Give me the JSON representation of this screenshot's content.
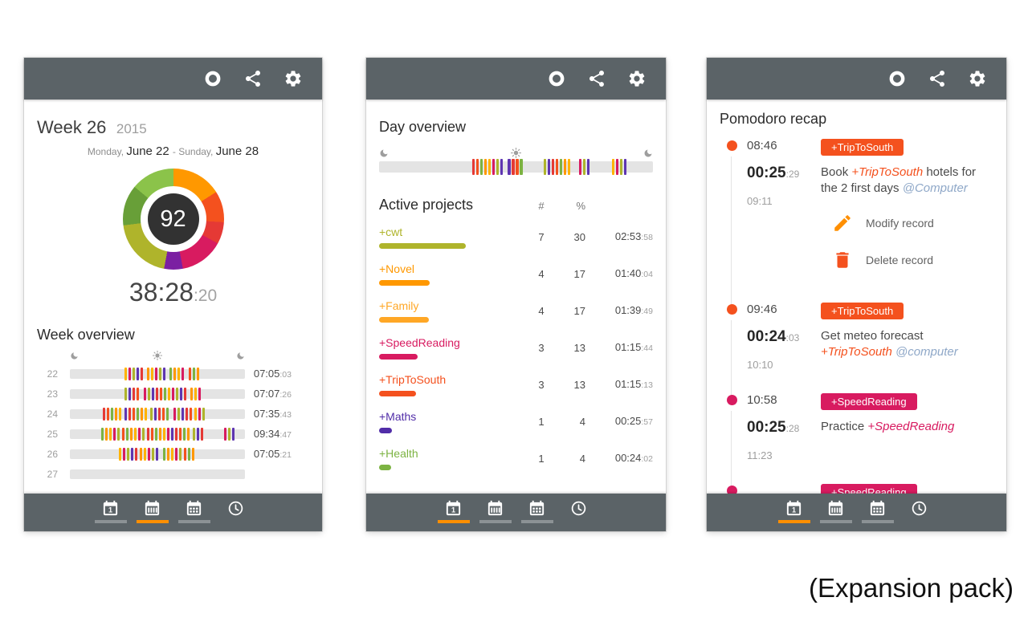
{
  "caption": "(Expansion pack)",
  "colors": {
    "toolbar": "#5b6367",
    "accent": "#FF8F00",
    "deep_orange": "#F4511E",
    "pink": "#D81B60",
    "context_blue": "#8FA8C8",
    "palette": [
      "#AFB42B",
      "#FF9800",
      "#E53935",
      "#D81B60",
      "#7CB342",
      "#5E35B1",
      "#FFB300",
      "#F4511E"
    ]
  },
  "toolbar": {
    "icons": [
      {
        "name": "record"
      },
      {
        "name": "share"
      },
      {
        "name": "settings"
      }
    ]
  },
  "nav": {
    "tabs": [
      {
        "name": "day-view",
        "icon": "day-calendar",
        "underline": true
      },
      {
        "name": "week-view",
        "icon": "week-calendar",
        "underline": true
      },
      {
        "name": "month-view",
        "icon": "month-calendar",
        "underline": true
      },
      {
        "name": "history",
        "icon": "history-clock",
        "underline": false
      }
    ]
  },
  "week_panel": {
    "selected_tab": 1,
    "title": "Week 26",
    "year": "2015",
    "range": [
      {
        "t": "Monday, ",
        "k": "sm"
      },
      {
        "t": "June 22 ",
        "k": "lg"
      },
      {
        "t": "- Sunday, ",
        "k": "sm"
      },
      {
        "t": "June 28",
        "k": "lg"
      }
    ],
    "donut": {
      "value": "92",
      "segments": [
        {
          "color": "#FF9800",
          "pct": 16
        },
        {
          "color": "#F4511E",
          "pct": 10
        },
        {
          "color": "#E53935",
          "pct": 7
        },
        {
          "color": "#D81B60",
          "pct": 14
        },
        {
          "color": "#7B1FA2",
          "pct": 6
        },
        {
          "color": "#AFB42B",
          "pct": 20
        },
        {
          "color": "#689F38",
          "pct": 13
        },
        {
          "color": "#8BC34A",
          "pct": 14
        }
      ]
    },
    "total": {
      "main": "38:28",
      "sec": ":20"
    },
    "section_title": "Week overview",
    "rows": [
      {
        "day": "22",
        "time": "07:05",
        "sec": ":03",
        "clusters": [
          {
            "s": 0.31,
            "n": 5
          },
          {
            "s": 0.44,
            "n": 5
          },
          {
            "s": 0.57,
            "n": 4
          },
          {
            "s": 0.68,
            "n": 3
          }
        ]
      },
      {
        "day": "23",
        "time": "07:07",
        "sec": ":26",
        "clusters": [
          {
            "s": 0.31,
            "n": 4
          },
          {
            "s": 0.42,
            "n": 6
          },
          {
            "s": 0.56,
            "n": 5
          },
          {
            "s": 0.69,
            "n": 3
          }
        ]
      },
      {
        "day": "24",
        "time": "07:35",
        "sec": ":43",
        "clusters": [
          {
            "s": 0.19,
            "n": 5
          },
          {
            "s": 0.31,
            "n": 6
          },
          {
            "s": 0.46,
            "n": 5
          },
          {
            "s": 0.59,
            "n": 5
          },
          {
            "s": 0.71,
            "n": 3
          }
        ]
      },
      {
        "day": "25",
        "time": "09:34",
        "sec": ":47",
        "clusters": [
          {
            "s": 0.18,
            "n": 5
          },
          {
            "s": 0.3,
            "n": 6
          },
          {
            "s": 0.44,
            "n": 6
          },
          {
            "s": 0.58,
            "n": 5
          },
          {
            "s": 0.7,
            "n": 3
          },
          {
            "s": 0.88,
            "n": 3
          }
        ]
      },
      {
        "day": "26",
        "time": "07:05",
        "sec": ":21",
        "clusters": [
          {
            "s": 0.28,
            "n": 5
          },
          {
            "s": 0.4,
            "n": 5
          },
          {
            "s": 0.53,
            "n": 5
          },
          {
            "s": 0.65,
            "n": 3
          }
        ]
      },
      {
        "day": "27",
        "time": "",
        "sec": "",
        "clusters": []
      }
    ]
  },
  "day_panel": {
    "selected_tab": 0,
    "title": "Day overview",
    "clusters": [
      {
        "s": 0.34,
        "n": 8
      },
      {
        "s": 0.47,
        "n": 4
      },
      {
        "s": 0.6,
        "n": 7
      },
      {
        "s": 0.73,
        "n": 3
      },
      {
        "s": 0.85,
        "n": 4
      }
    ],
    "projects_title": "Active projects",
    "col_count": "#",
    "col_pct": "%",
    "projects": [
      {
        "name": "+cwt",
        "color": "#AFB42B",
        "count": "7",
        "pct": "30",
        "time": "02:53",
        "sec": ":58",
        "bar": 100
      },
      {
        "name": "+Novel",
        "color": "#FF9800",
        "count": "4",
        "pct": "17",
        "time": "01:40",
        "sec": ":04",
        "bar": 58
      },
      {
        "name": "+Family",
        "color": "#FFA726",
        "count": "4",
        "pct": "17",
        "time": "01:39",
        "sec": ":49",
        "bar": 57
      },
      {
        "name": "+SpeedReading",
        "color": "#D81B60",
        "count": "3",
        "pct": "13",
        "time": "01:15",
        "sec": ":44",
        "bar": 44
      },
      {
        "name": "+TripToSouth",
        "color": "#F4511E",
        "count": "3",
        "pct": "13",
        "time": "01:15",
        "sec": ":13",
        "bar": 43
      },
      {
        "name": "+Maths",
        "color": "#512DA8",
        "count": "1",
        "pct": "4",
        "time": "00:25",
        "sec": ":57",
        "bar": 15
      },
      {
        "name": "+Health",
        "color": "#7CB342",
        "count": "1",
        "pct": "4",
        "time": "00:24",
        "sec": ":02",
        "bar": 14
      }
    ]
  },
  "recap_panel": {
    "selected_tab": 0,
    "title": "Pomodoro recap",
    "records": [
      {
        "start": "08:46",
        "end": "09:11",
        "dur": "00:25",
        "dur_sec": ":29",
        "tag": "+TripToSouth",
        "tag_color": "#F4511E",
        "desc": [
          "Book ",
          "+TripToSouth",
          " hotels for the 2 first days ",
          "@Computer"
        ],
        "actions": {
          "modify": "Modify record",
          "delete": "Delete record"
        }
      },
      {
        "start": "09:46",
        "end": "10:10",
        "dur": "00:24",
        "dur_sec": ":03",
        "tag": "+TripToSouth",
        "tag_color": "#F4511E",
        "desc": [
          "Get meteo forecast ",
          "+TripToSouth",
          " ",
          "@computer"
        ]
      },
      {
        "start": "10:58",
        "end": "11:23",
        "dur": "00:25",
        "dur_sec": ":28",
        "tag": "+SpeedReading",
        "tag_color": "#D81B60",
        "desc": [
          "Practice ",
          "+SpeedReading"
        ]
      },
      {
        "start": "",
        "tag": "+SpeedReading",
        "tag_color": "#D81B60"
      }
    ]
  }
}
